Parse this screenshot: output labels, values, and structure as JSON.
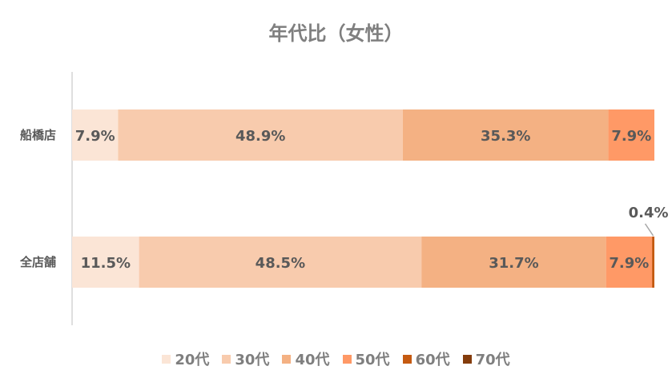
{
  "chart_data": {
    "type": "bar",
    "orientation": "horizontal",
    "stacked": "percent",
    "title": "年代比（女性）",
    "categories": [
      "船橋店",
      "全店舗"
    ],
    "series": [
      {
        "name": "20代",
        "color": "#fbe5d6",
        "values": [
          7.9,
          11.5
        ]
      },
      {
        "name": "30代",
        "color": "#f8cbad",
        "values": [
          48.9,
          48.5
        ]
      },
      {
        "name": "40代",
        "color": "#f4b183",
        "values": [
          35.3,
          31.7
        ]
      },
      {
        "name": "50代",
        "color": "#ff9966",
        "values": [
          7.9,
          7.9
        ]
      },
      {
        "name": "60代",
        "color": "#c55a11",
        "values": [
          0,
          0.4
        ]
      },
      {
        "name": "70代",
        "color": "#843c0c",
        "values": [
          0,
          0
        ]
      }
    ],
    "data_label_format": "%",
    "legend": "bottom",
    "grid": false
  }
}
